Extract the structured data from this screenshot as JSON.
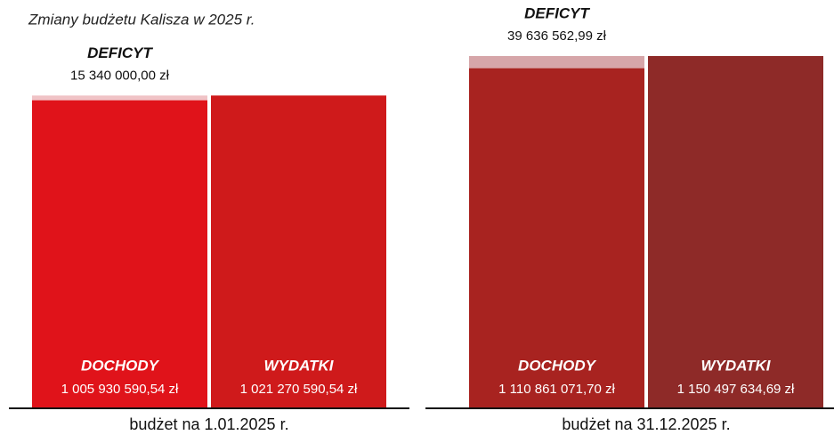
{
  "chart_data": {
    "type": "bar",
    "title": "Zmiany budżetu Kalisza w 2025 r.",
    "categories": [
      "budżet na 1.01.2025 r.",
      "budżet na 31.12.2025 r."
    ],
    "series": [
      {
        "name": "DOCHODY",
        "colors": [
          "#e0131a",
          "#a82320"
        ],
        "values": [
          1005930590.54,
          1110861071.7
        ],
        "value_labels": [
          "1 005 930 590,54 zł",
          "1 110 861 071,70 zł"
        ]
      },
      {
        "name": "DEFICYT",
        "colors": [
          "#f0c3c6",
          "#d6a6a9"
        ],
        "values": [
          15340000.0,
          39636562.99
        ],
        "value_labels": [
          "15 340 000,00 zł",
          "39 636 562,99 zł"
        ],
        "stacked_on": "DOCHODY"
      },
      {
        "name": "WYDATKI",
        "colors": [
          "#cf1a1b",
          "#8e2a28"
        ],
        "values": [
          1021270590.54,
          1150497634.69
        ],
        "value_labels": [
          "1 021 270 590,54 zł",
          "1 150 497 634,69 zł"
        ]
      }
    ]
  }
}
